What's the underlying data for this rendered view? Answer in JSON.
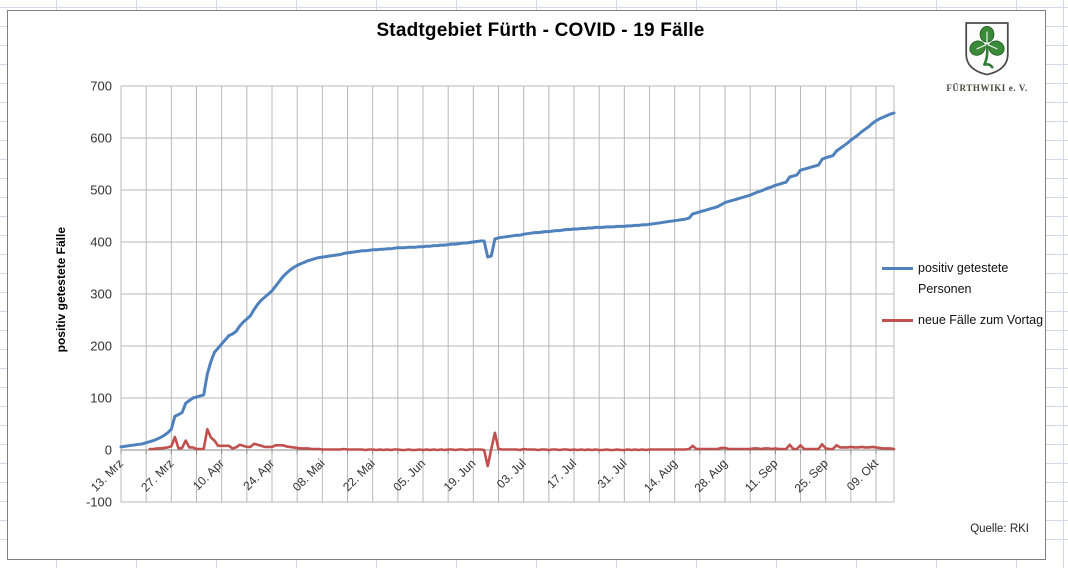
{
  "logo": {
    "org": "FÜRTHWIKI e. V."
  },
  "chart_data": {
    "type": "line",
    "title": "Stadtgebiet Fürth - COVID - 19 Fälle",
    "xlabel": "",
    "ylabel": "positiv getestete Fälle",
    "ylim": [
      -100,
      700
    ],
    "y_ticks": [
      700,
      600,
      500,
      400,
      300,
      200,
      100,
      0,
      -100
    ],
    "x_tick_labels": [
      "13. Mrz",
      "27. Mrz",
      "10. Apr",
      "24. Apr",
      "08. Mai",
      "22. Mai",
      "05. Jun",
      "19. Jun",
      "03. Jul",
      "17. Jul",
      "31. Jul",
      "14. Aug",
      "28. Aug",
      "11. Sep",
      "25. Sep",
      "09. Okt"
    ],
    "x_tick_interval_days": 14,
    "gridline_interval_days": 7,
    "total_days": 215,
    "grid": true,
    "legend_position": "right",
    "source": "Quelle: RKI",
    "series": [
      {
        "name": "positiv getestete Personen",
        "color": "#4F81BD",
        "kind": "cumulative",
        "start_day": 0,
        "values": [
          6,
          7,
          8,
          9,
          10,
          11,
          12,
          14,
          16,
          18,
          21,
          24,
          28,
          33,
          40,
          65,
          68,
          72,
          90,
          95,
          100,
          102,
          104,
          106,
          146,
          170,
          188,
          196,
          204,
          212,
          220,
          223,
          228,
          238,
          246,
          252,
          258,
          270,
          280,
          288,
          294,
          300,
          306,
          315,
          324,
          333,
          340,
          346,
          351,
          355,
          358,
          361,
          364,
          366,
          368,
          370,
          371,
          372,
          373,
          374,
          375,
          376,
          378,
          379,
          380,
          381,
          382,
          383,
          383,
          384,
          385,
          385,
          386,
          386,
          387,
          387,
          388,
          389,
          389,
          389,
          390,
          390,
          390,
          391,
          391,
          392,
          392,
          393,
          393,
          394,
          394,
          395,
          396,
          396,
          397,
          398,
          398,
          399,
          400,
          401,
          402,
          402,
          371,
          373,
          406,
          408,
          409,
          410,
          411,
          412,
          413,
          413,
          415,
          416,
          417,
          418,
          418,
          419,
          420,
          420,
          421,
          422,
          422,
          423,
          424,
          424,
          425,
          425,
          426,
          426,
          427,
          427,
          428,
          428,
          428,
          429,
          429,
          429,
          430,
          430,
          430,
          431,
          431,
          432,
          432,
          433,
          433,
          434,
          435,
          436,
          437,
          438,
          439,
          440,
          441,
          442,
          443,
          444,
          446,
          454,
          456,
          458,
          460,
          462,
          464,
          466,
          468,
          472,
          476,
          478,
          480,
          482,
          484,
          486,
          488,
          490,
          493,
          496,
          498,
          501,
          504,
          506,
          509,
          511,
          513,
          515,
          525,
          527,
          529,
          538,
          540,
          542,
          544,
          546,
          548,
          559,
          562,
          564,
          566,
          575,
          580,
          585,
          590,
          596,
          601,
          606,
          612,
          617,
          622,
          628,
          633,
          637,
          640,
          643,
          646,
          648
        ]
      },
      {
        "name": "neue Fälle zum Vortag",
        "color": "#C0504D",
        "kind": "daily_new",
        "start_day": 8,
        "derived": "day-over-day difference of cumulative series"
      }
    ]
  }
}
